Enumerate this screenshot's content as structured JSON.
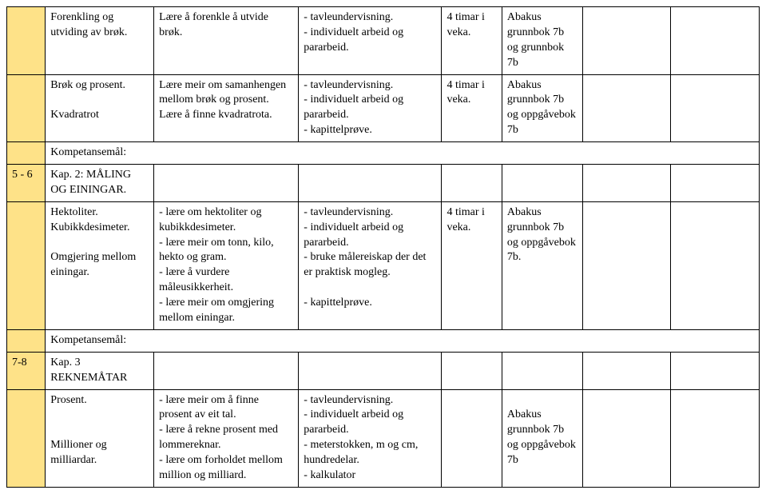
{
  "rows": {
    "r1": {
      "topic": "Forenkling og utviding av brøk.",
      "goal": "Lære å forenkle å utvide brøk.",
      "method": "- tavleundervisning.\n- individuelt arbeid og pararbeid.",
      "time": "4 timar i veka.",
      "material": "Abakus grunnbok 7b og grunnbok 7b"
    },
    "r2": {
      "topic": "Brøk og prosent.\n\nKvadratrot",
      "goal": "Lære meir om samanhengen mellom brøk og prosent.\nLære å finne kvadratrota.",
      "method": "- tavleundervisning.\n- individuelt arbeid og pararbeid.\n- kapittelprøve.",
      "time": "4 timar i veka.",
      "material": "Abakus grunnbok 7b og oppgåvebok 7b"
    },
    "komp1": "Kompetansemål:",
    "r3": {
      "week": "5 - 6",
      "chapter": "Kap. 2: MÅLING OG EININGAR."
    },
    "r4": {
      "topic": "Hektoliter.\nKubikkdesimeter.\n\nOmgjering mellom einingar.",
      "goal": "- lære om hektoliter og kubikkdesimeter.\n- lære meir om tonn, kilo, hekto og gram.\n- lære å vurdere måleusikkerheit.\n- lære meir om omgjering mellom einingar.",
      "method": "- tavleundervisning.\n- individuelt arbeid og pararbeid.\n- bruke målereiskap der det er praktisk mogleg.\n\n- kapittelprøve.",
      "time": "4 timar i veka.",
      "material": "Abakus grunnbok 7b og oppgåvebok 7b."
    },
    "komp2": "Kompetansemål:",
    "r5": {
      "week": "7-8",
      "chapter": "Kap. 3 REKNEMÅTAR"
    },
    "r6": {
      "topic": "Prosent.\n\n\nMillioner og milliardar.",
      "goal": "- lære meir om å finne prosent av eit tal.\n- lære å rekne prosent med lommereknar.\n- lære om forholdet mellom million og milliard.",
      "method": "- tavleundervisning.\n- individuelt arbeid og pararbeid.\n- meterstokken, m og cm, hundredelar.\n- kalkulator",
      "time": "",
      "material": "\nAbakus grunnbok 7b og oppgåvebok 7b"
    }
  }
}
